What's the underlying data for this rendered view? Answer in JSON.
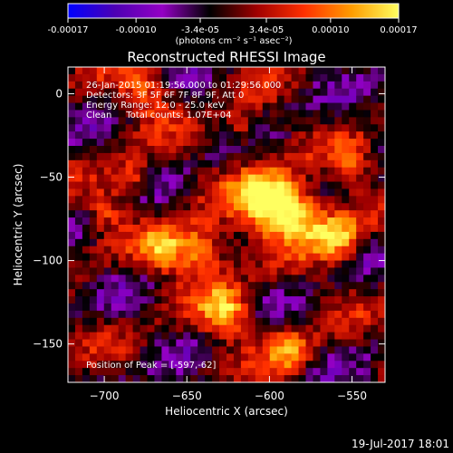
{
  "colorbar": {
    "tick_labels": [
      "-0.00017",
      "-0.00010",
      "-3.4e-05",
      "3.4e-05",
      "0.00010",
      "0.00017"
    ],
    "tick_values": [
      -0.00017,
      -0.0001,
      -3.4e-05,
      3.4e-05,
      0.0001,
      0.00017
    ],
    "range": [
      -0.00017,
      0.00017
    ],
    "unit_label": "(photons cm⁻² s⁻¹ asec⁻²)",
    "colors": [
      "#0000ff",
      "#4d00b3",
      "#9400c4",
      "#000000",
      "#a00000",
      "#ff3000",
      "#ff9c00",
      "#ffff60"
    ]
  },
  "chart_data": {
    "type": "heatmap",
    "title": "Reconstructed RHESSI Image",
    "xlabel": "Heliocentric X (arcsec)",
    "ylabel": "Heliocentric Y (arcsec)",
    "xlim": [
      -722,
      -530
    ],
    "ylim": [
      -173,
      16
    ],
    "xticks": [
      -700,
      -650,
      -600,
      -550
    ],
    "yticks": [
      0,
      -50,
      -100,
      -150
    ],
    "xtick_labels": [
      "−700",
      "−650",
      "−600",
      "−550"
    ],
    "ytick_labels": [
      "0",
      "−50",
      "−100",
      "−150"
    ],
    "info_lines": [
      "26-Jan-2015 01:19:56.000 to 01:29:56.000",
      "Detectors: 3F 5F 6F 7F 8F 9F, Att 0",
      "Energy Range: 12.0 - 25.0 keV",
      "Clean     Total counts: 1.07E+04"
    ],
    "peak_label": "Position of Peak = [-597,-62]",
    "peak_position": [
      -597,
      -62
    ]
  },
  "footer": {
    "timestamp": "19-Jul-2017 18:01"
  }
}
